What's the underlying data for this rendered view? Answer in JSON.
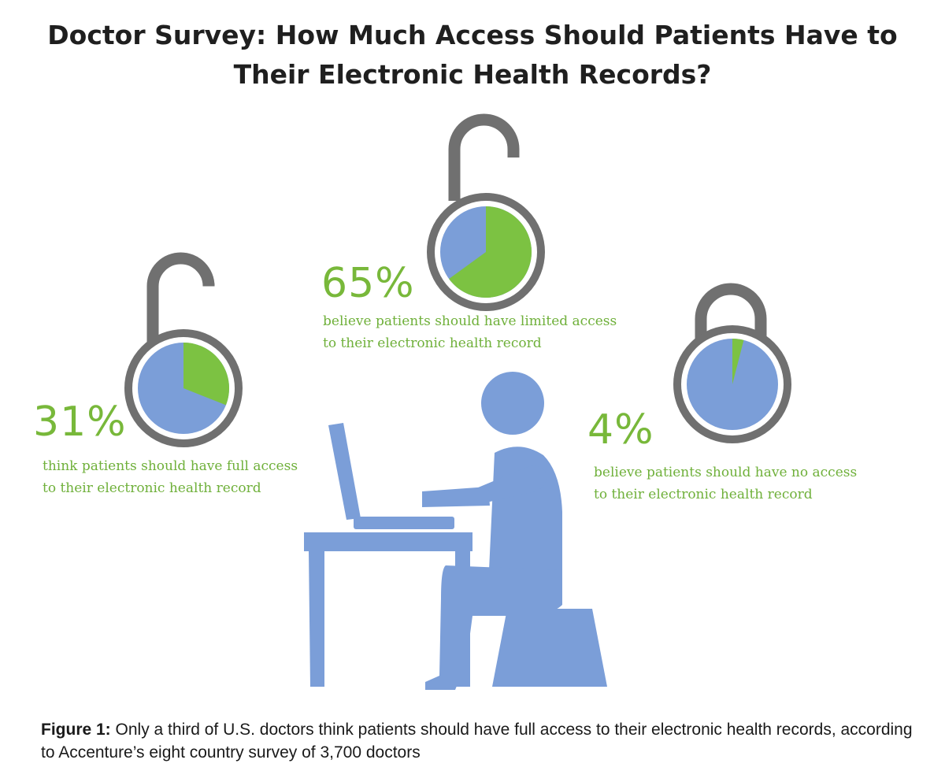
{
  "colors": {
    "green": "#7cc242",
    "blue": "#7b9ed8",
    "lock_gray": "#707070",
    "pct_text": "#78b83a",
    "desc_text": "#6fb03a"
  },
  "chart_data": {
    "type": "pie",
    "title": "Doctor Survey:  How Much Access Should Patients Have to Their Electronic Health Records?",
    "title_lines": [
      "Doctor Survey:  How Much Access Should Patients Have to",
      "Their Electronic Health Records?"
    ],
    "charts": [
      {
        "id": "full",
        "value": 31,
        "label": "31%",
        "description_lines": [
          "think patients should have full access",
          "to their electronic health record"
        ],
        "icon": "open-padlock-icon"
      },
      {
        "id": "limited",
        "value": 65,
        "label": "65%",
        "description_lines": [
          "believe patients should have limited access",
          "to their electronic health record"
        ],
        "icon": "open-padlock-icon"
      },
      {
        "id": "none",
        "value": 4,
        "label": "4%",
        "description_lines": [
          "believe patients should have no access",
          "to their electronic health record"
        ],
        "icon": "closed-padlock-icon"
      }
    ]
  },
  "illustration": {
    "icon": "doctor-at-laptop-icon"
  },
  "caption": {
    "label": "Figure 1:",
    "text": " Only a third of  U.S. doctors  think patients should have full access to their electronic health records, according to Accenture’s eight country survey of 3,700 doctors"
  }
}
